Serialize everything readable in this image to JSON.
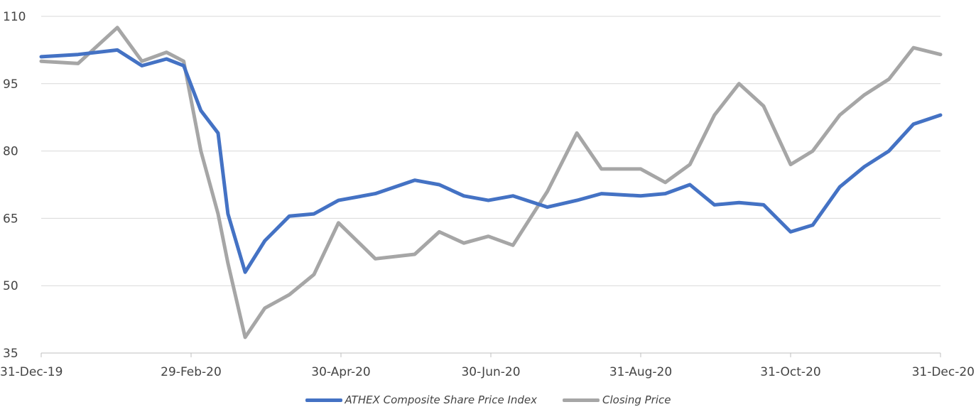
{
  "chart_data": {
    "type": "line",
    "title": "",
    "xlabel": "",
    "ylabel": "",
    "ylim": [
      35,
      110
    ],
    "yticks": [
      35,
      50,
      65,
      80,
      95,
      110
    ],
    "x_tick_labels": [
      "31-Dec-19",
      "29-Feb-20",
      "30-Apr-20",
      "30-Jun-20",
      "31-Aug-20",
      "31-Oct-20",
      "31-Dec-20"
    ],
    "grid": true,
    "legend_position": "bottom",
    "x": [
      "2019-12-31",
      "2020-01-15",
      "2020-01-31",
      "2020-02-10",
      "2020-02-20",
      "2020-02-27",
      "2020-03-05",
      "2020-03-12",
      "2020-03-16",
      "2020-03-23",
      "2020-03-31",
      "2020-04-10",
      "2020-04-20",
      "2020-04-30",
      "2020-05-15",
      "2020-05-31",
      "2020-06-10",
      "2020-06-20",
      "2020-06-30",
      "2020-07-10",
      "2020-07-24",
      "2020-08-05",
      "2020-08-15",
      "2020-08-31",
      "2020-09-10",
      "2020-09-20",
      "2020-09-30",
      "2020-10-10",
      "2020-10-20",
      "2020-10-31",
      "2020-11-09",
      "2020-11-20",
      "2020-11-30",
      "2020-12-10",
      "2020-12-20",
      "2020-12-31"
    ],
    "series": [
      {
        "name": "ATHEX Composite Share Price Index",
        "color": "#4472c4",
        "values": [
          101,
          101.5,
          102.5,
          99,
          100.5,
          99,
          89,
          84,
          66,
          53,
          60,
          65.5,
          66,
          69,
          70.5,
          73.5,
          72.5,
          70,
          69,
          70,
          67.5,
          69,
          70.5,
          70,
          70.5,
          72.5,
          68,
          68.5,
          68,
          62,
          63.5,
          72,
          76.5,
          80,
          86,
          88
        ]
      },
      {
        "name": "Closing Price",
        "color": "#a6a6a6",
        "values": [
          100,
          99.5,
          107.5,
          100,
          102,
          100,
          80,
          66,
          55,
          38.5,
          45,
          48,
          52.5,
          64,
          56,
          57,
          62,
          59.5,
          61,
          59,
          71,
          84,
          76,
          76,
          73,
          77,
          88,
          95,
          90,
          77,
          80,
          88,
          92.5,
          96,
          103,
          101.5
        ]
      }
    ]
  }
}
